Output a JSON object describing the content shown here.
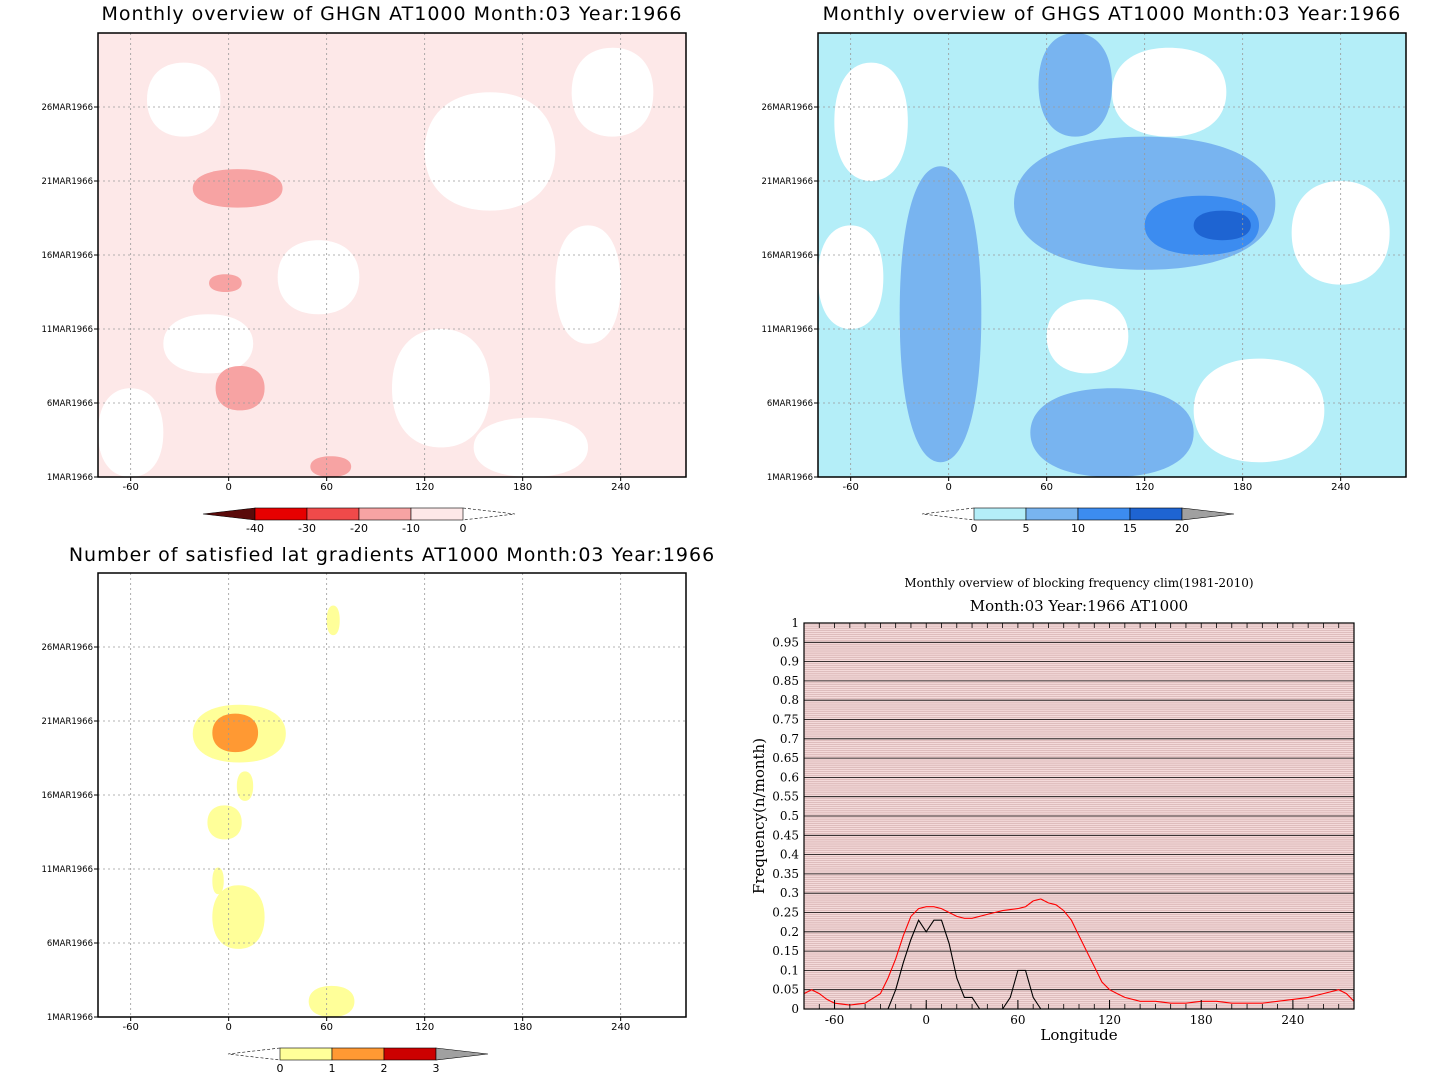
{
  "chart_data": [
    {
      "type": "heatmap",
      "title": "Monthly overview of GHGN AT1000 Month:03 Year:1966",
      "xlabel": "",
      "ylabel": "",
      "x_ticks": [
        "-60",
        "0",
        "60",
        "120",
        "180",
        "240"
      ],
      "x_tick_values": [
        -60,
        0,
        60,
        120,
        180,
        240
      ],
      "xlim": [
        -80,
        280
      ],
      "y_ticks": [
        "1MAR1966",
        "6MAR1966",
        "11MAR1966",
        "16MAR1966",
        "21MAR1966",
        "26MAR1966"
      ],
      "y_tick_values": [
        1,
        6,
        11,
        16,
        21,
        26
      ],
      "ylim": [
        1,
        31
      ],
      "colorbar": {
        "labels": [
          "-40",
          "-30",
          "-20",
          "-10",
          "0"
        ],
        "colors": [
          "#5a0a0a",
          "#e60000",
          "#f04a4a",
          "#f7a3a3",
          "#fde8e8"
        ]
      },
      "regions": [
        {
          "level": "0 to -10",
          "color": "#fde8e8",
          "extent": "background"
        },
        {
          "level": "-10 to -20",
          "color": "#f7a3a3",
          "x": [
            -22,
            33
          ],
          "y": [
            19.2,
            21.8
          ]
        },
        {
          "level": "-10 to -20",
          "color": "#f7a3a3",
          "x": [
            -12,
            8
          ],
          "y": [
            13.5,
            14.7
          ]
        },
        {
          "level": "-10 to -20",
          "color": "#f7a3a3",
          "x": [
            -8,
            22
          ],
          "y": [
            5.5,
            8.5
          ]
        },
        {
          "level": "-10 to -20",
          "color": "#f7a3a3",
          "x": [
            50,
            75
          ],
          "y": [
            1,
            2.4
          ]
        }
      ],
      "grid": true
    },
    {
      "type": "heatmap",
      "title": "Monthly overview of GHGS AT1000 Month:03 Year:1966",
      "xlabel": "",
      "ylabel": "",
      "x_ticks": [
        "-60",
        "0",
        "60",
        "120",
        "180",
        "240"
      ],
      "x_tick_values": [
        -60,
        0,
        60,
        120,
        180,
        240
      ],
      "xlim": [
        -80,
        280
      ],
      "y_ticks": [
        "1MAR1966",
        "6MAR1966",
        "11MAR1966",
        "16MAR1966",
        "21MAR1966",
        "26MAR1966"
      ],
      "y_tick_values": [
        1,
        6,
        11,
        16,
        21,
        26
      ],
      "ylim": [
        1,
        31
      ],
      "colorbar": {
        "labels": [
          "0",
          "5",
          "10",
          "15",
          "20"
        ],
        "colors": [
          "#b4eef8",
          "#78b4f0",
          "#3c8cf0",
          "#1e64d2",
          "#a0a0a0"
        ]
      },
      "regions": [
        {
          "level": "0 to 5",
          "color": "#b4eef8",
          "extent": "most of domain"
        },
        {
          "level": "5 to 10",
          "color": "#78b4f0",
          "x": [
            -30,
            20
          ],
          "y": [
            2,
            22
          ]
        },
        {
          "level": "5 to 10",
          "color": "#78b4f0",
          "x": [
            40,
            200
          ],
          "y": [
            15,
            24
          ]
        },
        {
          "level": "5 to 10",
          "color": "#78b4f0",
          "x": [
            50,
            150
          ],
          "y": [
            1,
            7
          ]
        },
        {
          "level": "5 to 10",
          "color": "#78b4f0",
          "x": [
            55,
            100
          ],
          "y": [
            24,
            31
          ]
        },
        {
          "level": "10 to 15",
          "color": "#3c8cf0",
          "x": [
            120,
            190
          ],
          "y": [
            16,
            20
          ]
        },
        {
          "level": "15 to 20",
          "color": "#1e64d2",
          "x": [
            150,
            185
          ],
          "y": [
            17,
            19
          ]
        }
      ],
      "grid": true
    },
    {
      "type": "heatmap",
      "title": "Number of satisfied lat gradients AT1000 Month:03 Year:1966",
      "xlabel": "",
      "ylabel": "",
      "x_ticks": [
        "-60",
        "0",
        "60",
        "120",
        "180",
        "240"
      ],
      "x_tick_values": [
        -60,
        0,
        60,
        120,
        180,
        240
      ],
      "xlim": [
        -80,
        280
      ],
      "y_ticks": [
        "1MAR1966",
        "6MAR1966",
        "11MAR1966",
        "16MAR1966",
        "21MAR1966",
        "26MAR1966"
      ],
      "y_tick_values": [
        1,
        6,
        11,
        16,
        21,
        26
      ],
      "ylim": [
        1,
        31
      ],
      "colorbar": {
        "labels": [
          "0",
          "1",
          "2",
          "3"
        ],
        "colors": [
          "#ffff99",
          "#ff9933",
          "#cc0000",
          "#a0a0a0"
        ]
      },
      "regions": [
        {
          "level": "0 to 1",
          "color": "#ffff99",
          "x": [
            60,
            68
          ],
          "y": [
            26.8,
            28.8
          ]
        },
        {
          "level": "0 to 1",
          "color": "#ffff99",
          "x": [
            -22,
            35
          ],
          "y": [
            18.2,
            22.1
          ]
        },
        {
          "level": "1 to 2",
          "color": "#ff9933",
          "x": [
            -10,
            18
          ],
          "y": [
            18.9,
            21.5
          ]
        },
        {
          "level": "0 to 1",
          "color": "#ffff99",
          "x": [
            5,
            15
          ],
          "y": [
            15.6,
            17.6
          ]
        },
        {
          "level": "0 to 1",
          "color": "#ffff99",
          "x": [
            -13,
            8
          ],
          "y": [
            13.0,
            15.3
          ]
        },
        {
          "level": "0 to 1",
          "color": "#ffff99",
          "x": [
            -10,
            -3
          ],
          "y": [
            9.3,
            11.1
          ]
        },
        {
          "level": "0 to 1",
          "color": "#ffff99",
          "x": [
            -10,
            22
          ],
          "y": [
            5.6,
            9.9
          ]
        },
        {
          "level": "0 to 1",
          "color": "#ffff99",
          "x": [
            49,
            77
          ],
          "y": [
            1,
            3.1
          ]
        }
      ],
      "grid": true
    },
    {
      "type": "line",
      "title": "Monthly overview of blocking frequency clim(1981-2010)",
      "subtitle": "Month:03 Year:1966  AT1000",
      "xlabel": "Longitude",
      "ylabel": "Frequency(n/month)",
      "x_ticks": [
        "-60",
        "0",
        "60",
        "120",
        "180",
        "240"
      ],
      "x_tick_values": [
        -60,
        0,
        60,
        120,
        180,
        240
      ],
      "xlim": [
        -80,
        280
      ],
      "y_ticks": [
        "0",
        "0.05",
        "0.1",
        "0.15",
        "0.2",
        "0.25",
        "0.3",
        "0.35",
        "0.4",
        "0.45",
        "0.5",
        "0.55",
        "0.6",
        "0.65",
        "0.7",
        "0.75",
        "0.8",
        "0.85",
        "0.9",
        "0.95",
        "1"
      ],
      "ylim": [
        0,
        1
      ],
      "grid": true,
      "series": [
        {
          "color": "#ff0000",
          "x": [
            -80,
            -75,
            -70,
            -65,
            -60,
            -50,
            -40,
            -30,
            -25,
            -20,
            -15,
            -10,
            -5,
            0,
            5,
            10,
            15,
            20,
            25,
            30,
            40,
            50,
            60,
            65,
            70,
            75,
            80,
            85,
            90,
            95,
            100,
            105,
            110,
            115,
            120,
            125,
            130,
            140,
            150,
            160,
            170,
            180,
            190,
            200,
            210,
            220,
            230,
            240,
            250,
            260,
            270,
            275,
            280
          ],
          "y": [
            0.04,
            0.05,
            0.04,
            0.025,
            0.015,
            0.01,
            0.015,
            0.04,
            0.08,
            0.13,
            0.19,
            0.24,
            0.26,
            0.265,
            0.265,
            0.26,
            0.25,
            0.24,
            0.235,
            0.235,
            0.245,
            0.255,
            0.26,
            0.265,
            0.28,
            0.285,
            0.275,
            0.27,
            0.255,
            0.23,
            0.19,
            0.15,
            0.11,
            0.07,
            0.05,
            0.04,
            0.03,
            0.02,
            0.02,
            0.015,
            0.015,
            0.02,
            0.02,
            0.015,
            0.015,
            0.015,
            0.02,
            0.025,
            0.03,
            0.04,
            0.05,
            0.04,
            0.02
          ]
        },
        {
          "color": "#000000",
          "x": [
            -80,
            -25,
            -20,
            -15,
            -10,
            -5,
            0,
            5,
            10,
            15,
            20,
            25,
            30,
            35,
            50,
            55,
            60,
            65,
            70,
            75,
            280
          ],
          "y": [
            0,
            0,
            0.05,
            0.12,
            0.18,
            0.23,
            0.2,
            0.23,
            0.23,
            0.17,
            0.08,
            0.03,
            0.03,
            0,
            0,
            0.03,
            0.1,
            0.1,
            0.03,
            0,
            0
          ]
        }
      ]
    }
  ]
}
